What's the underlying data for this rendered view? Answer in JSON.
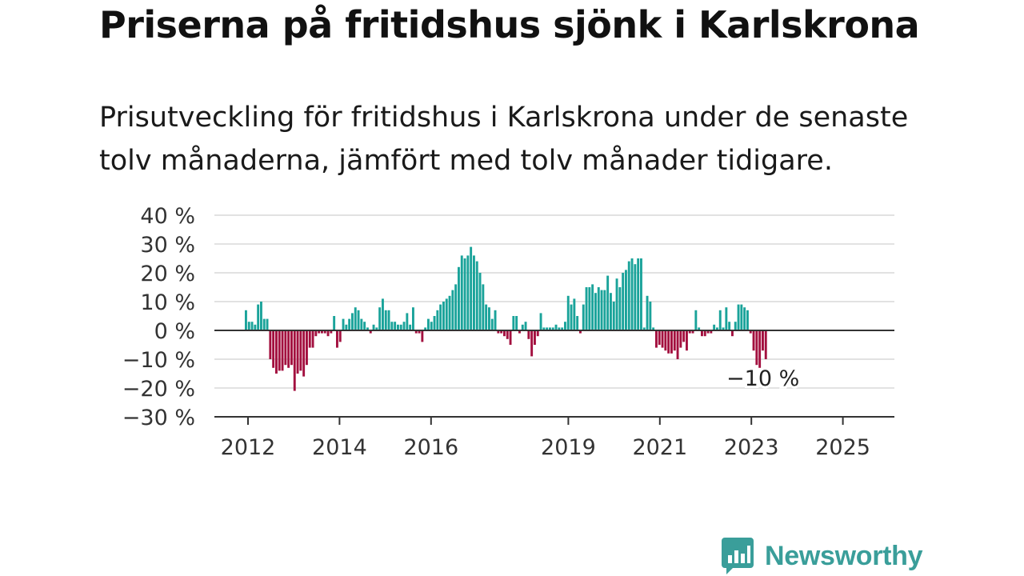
{
  "header": {
    "title": "Priserna på fritidshus sjönk i Karlskrona",
    "subtitle": "Prisutveckling för fritidshus i Karlskrona under de senaste tolv månaderna, jämfört med tolv månader tidigare."
  },
  "chart_data": {
    "type": "bar",
    "title": "Priserna på fritidshus sjönk i Karlskrona",
    "subtitle": "Prisutveckling för fritidshus i Karlskrona under de senaste tolv månaderna, jämfört med tolv månader tidigare.",
    "xlabel": "",
    "ylabel": "",
    "ylim": [
      -30,
      40
    ],
    "yticks": [
      40,
      30,
      20,
      10,
      0,
      -10,
      -20,
      -30
    ],
    "ytick_labels": [
      "40 %",
      "30 %",
      "20 %",
      "10 %",
      "0 %",
      "−10 %",
      "−20 %",
      "−30 %"
    ],
    "xtick_labels": [
      "2012",
      "2014",
      "2016",
      "2019",
      "2021",
      "2023",
      "2025"
    ],
    "xtick_years": [
      2012,
      2014,
      2016,
      2019,
      2021,
      2023,
      2025
    ],
    "x_start_month": "2012-01",
    "grid": true,
    "positive_color": "#1aa39a",
    "negative_color": "#a3103f",
    "annotation": {
      "text": "−10 %",
      "value": -10
    },
    "values": [
      7,
      3,
      3,
      2,
      9,
      10,
      4,
      4,
      -10,
      -13,
      -15,
      -14,
      -14,
      -12,
      -13,
      -12,
      -21,
      -15,
      -14,
      -16,
      -12,
      -6,
      -6,
      -2,
      -1,
      -1,
      -1,
      -2,
      -1,
      5,
      -6,
      -4,
      4,
      2,
      4,
      6,
      8,
      7,
      4,
      3,
      1,
      -1,
      2,
      1,
      8,
      11,
      7,
      7,
      3,
      3,
      2,
      2,
      3,
      6,
      2,
      8,
      -1,
      -1,
      -4,
      1,
      4,
      3,
      5,
      7,
      9,
      10,
      11,
      12,
      14,
      16,
      22,
      26,
      25,
      26,
      29,
      26,
      24,
      20,
      16,
      9,
      8,
      4,
      7,
      -1,
      -1,
      -2,
      -3,
      -5,
      5,
      5,
      -1,
      2,
      3,
      -3,
      -9,
      -5,
      -2,
      6,
      1,
      1,
      1,
      1,
      2,
      1,
      1,
      3,
      12,
      9,
      11,
      5,
      -1,
      9,
      15,
      15,
      16,
      13,
      15,
      14,
      14,
      19,
      13,
      10,
      18,
      15,
      20,
      21,
      24,
      25,
      23,
      25,
      25,
      1,
      12,
      10,
      1,
      -6,
      -5,
      -6,
      -7,
      -8,
      -8,
      -7,
      -10,
      -6,
      -4,
      -7,
      -1,
      -1,
      7,
      1,
      -2,
      -2,
      -1,
      -1,
      2,
      1,
      7,
      1,
      8,
      3,
      -2,
      3,
      9,
      9,
      8,
      7,
      -1,
      -7,
      -12,
      -13,
      -7,
      -10
    ]
  },
  "logo": {
    "text": "Newsworthy"
  },
  "icons": {
    "logo_icon": "bar-chart-speech-bubble-icon"
  }
}
